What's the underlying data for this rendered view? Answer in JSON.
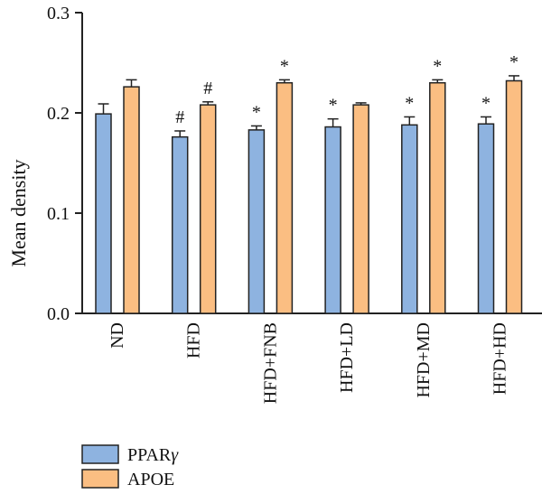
{
  "chart_data": {
    "type": "bar",
    "title": "",
    "xlabel": "",
    "ylabel": "Mean density",
    "ylim": [
      0,
      0.3
    ],
    "yticks": [
      "0.0",
      "0.1",
      "0.2",
      "0.3"
    ],
    "ytick_values": [
      0,
      0.1,
      0.2,
      0.3
    ],
    "categories": [
      "ND",
      "HFD",
      "HFD+FNB",
      "HFD+LD",
      "HFD+MD",
      "HFD+HD"
    ],
    "series": [
      {
        "name": "PPARγ",
        "name_base": "PPAR",
        "name_suffix": "γ",
        "color": "#8EB3E0",
        "values": [
          0.199,
          0.176,
          0.183,
          0.186,
          0.188,
          0.189
        ],
        "errors": [
          0.01,
          0.006,
          0.004,
          0.008,
          0.008,
          0.007
        ],
        "marks": [
          "",
          "#",
          "*",
          "*",
          "*",
          "*"
        ]
      },
      {
        "name": "APOE",
        "color": "#FBBE82",
        "values": [
          0.226,
          0.208,
          0.23,
          0.208,
          0.23,
          0.232
        ],
        "errors": [
          0.007,
          0.003,
          0.003,
          0.002,
          0.003,
          0.005
        ],
        "marks": [
          "",
          "#",
          "*",
          "",
          "*",
          "*"
        ]
      }
    ],
    "error_bars": true,
    "grid": false,
    "legend_position": "bottom-left"
  },
  "colors": {
    "ppar": "#8EB3E0",
    "apoe": "#FBBE82",
    "stroke": "#222222"
  }
}
